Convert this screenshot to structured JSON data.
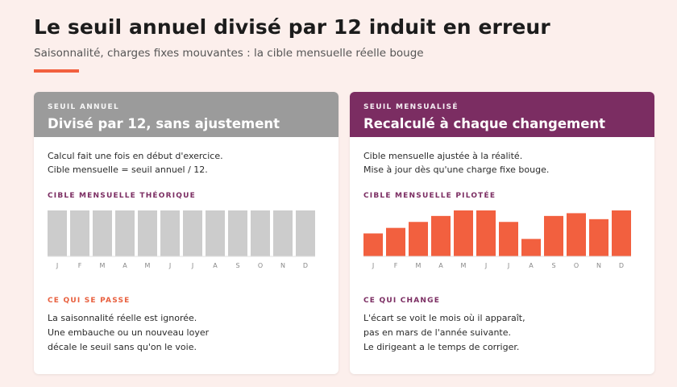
{
  "header": {
    "title": "Le seuil annuel divisé par 12 induit en erreur",
    "subtitle": "Saisonnalité, charges fixes mouvantes : la cible mensuelle réelle bouge"
  },
  "colors": {
    "accent": "#f2603f",
    "plum": "#7b2d62",
    "gray_header": "#9b9b9b",
    "gray_bar": "#cccccc",
    "orange_bar": "#f2603f"
  },
  "left_card": {
    "kicker": "SEUIL ANNUEL",
    "title": "Divisé par 12, sans ajustement",
    "desc_line1": "Calcul fait une fois en début d'exercice.",
    "desc_line2": "Cible mensuelle = seuil annuel / 12.",
    "chart_label": "CIBLE MENSUELLE THÉORIQUE",
    "note_label": "CE QUI SE PASSE",
    "note_line1": "La saisonnalité réelle est ignorée.",
    "note_line2": "Une embauche ou un nouveau loyer",
    "note_line3": "décale le seuil sans qu'on le voie."
  },
  "right_card": {
    "kicker": "SEUIL MENSUALISÉ",
    "title": "Recalculé à chaque changement",
    "desc_line1": "Cible mensuelle ajustée à la réalité.",
    "desc_line2": "Mise à jour dès qu'une charge fixe bouge.",
    "chart_label": "CIBLE MENSUELLE PILOTÉE",
    "note_label": "CE QUI CHANGE",
    "note_line1": "L'écart se voit le mois où il apparaît,",
    "note_line2": "pas en mars de l'année suivante.",
    "note_line3": "Le dirigeant a le temps de corriger."
  },
  "chart_data": [
    {
      "type": "bar",
      "title": "CIBLE MENSUELLE THÉORIQUE",
      "categories": [
        "J",
        "F",
        "M",
        "A",
        "M",
        "J",
        "J",
        "A",
        "S",
        "O",
        "N",
        "D"
      ],
      "values": [
        100,
        100,
        100,
        100,
        100,
        100,
        100,
        100,
        100,
        100,
        100,
        100
      ],
      "ylim": [
        0,
        100
      ],
      "color": "#cccccc"
    },
    {
      "type": "bar",
      "title": "CIBLE MENSUELLE PILOTÉE",
      "categories": [
        "J",
        "F",
        "M",
        "A",
        "M",
        "J",
        "J",
        "A",
        "S",
        "O",
        "N",
        "D"
      ],
      "values": [
        50,
        62,
        75,
        88,
        100,
        100,
        75,
        38,
        88,
        94,
        81,
        100
      ],
      "ylim": [
        0,
        100
      ],
      "color": "#f2603f"
    }
  ]
}
